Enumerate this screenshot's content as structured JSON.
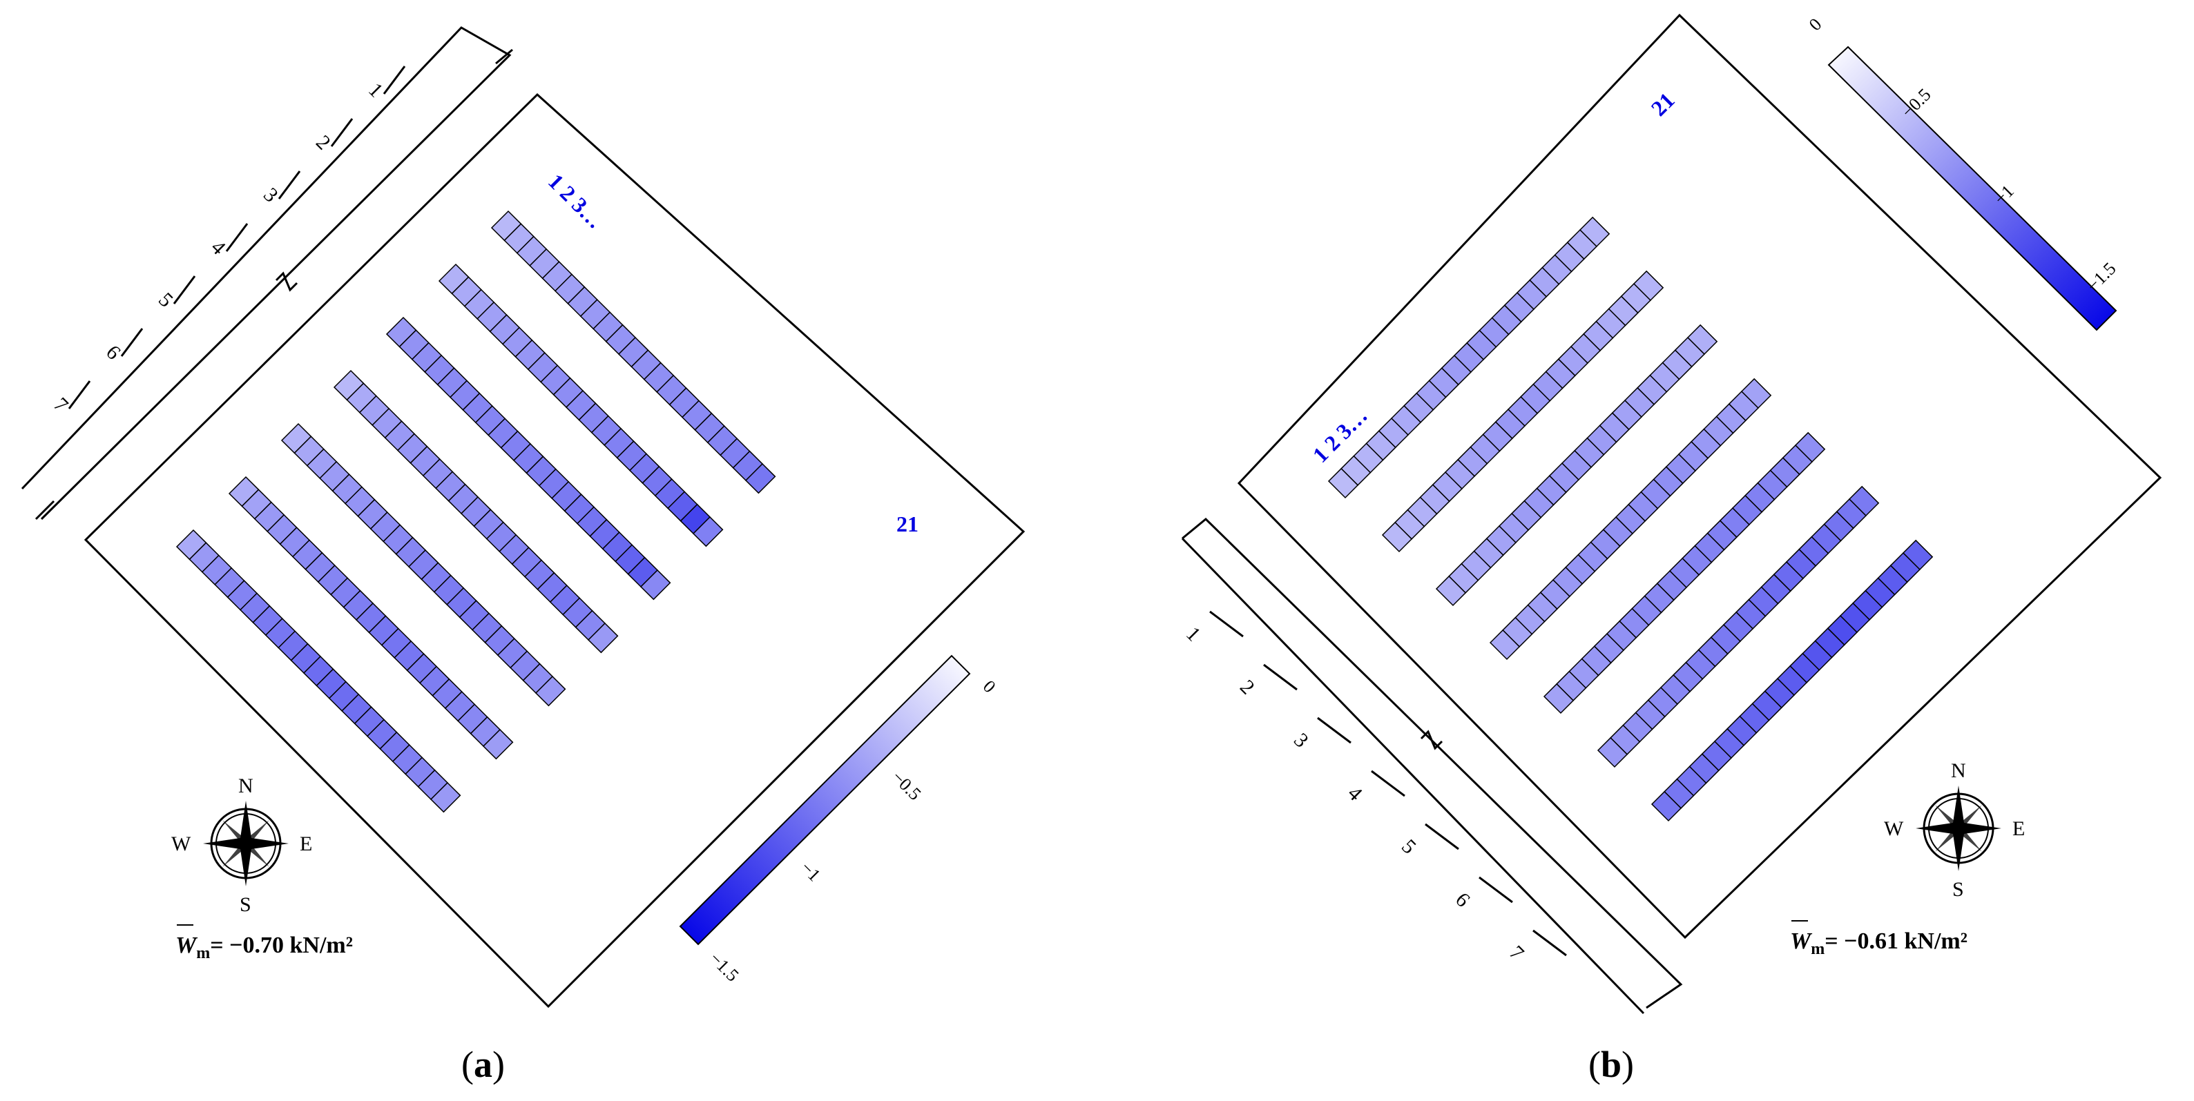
{
  "panels": [
    {
      "caption": "(a)",
      "caption_parts": {
        "open": "(",
        "letter": "a",
        "close": ")"
      },
      "mean_label": {
        "symbol": "W",
        "subscript": "m",
        "text": "= −0.70 kN/m²"
      },
      "row_label_start": "1 2 3…",
      "row_label_end": "21",
      "wind_arrows": [
        "1",
        "2",
        "3",
        "4",
        "5",
        "6",
        "7"
      ],
      "colorbar": {
        "ticks": [
          "0",
          "−0.5",
          "−1",
          "−1.5"
        ],
        "min": -1.5,
        "max": 0
      },
      "compass": {
        "n": "N",
        "s": "S",
        "e": "E",
        "w": "W"
      },
      "rows": [
        [
          -0.42,
          -0.47,
          -0.5,
          -0.52,
          -0.54,
          -0.56,
          -0.58,
          -0.6,
          -0.62,
          -0.63,
          -0.64,
          -0.65,
          -0.66,
          -0.67,
          -0.68,
          -0.69,
          -0.7,
          -0.72,
          -0.74,
          -0.77,
          -0.8
        ],
        [
          -0.46,
          -0.5,
          -0.53,
          -0.56,
          -0.58,
          -0.6,
          -0.62,
          -0.64,
          -0.66,
          -0.67,
          -0.68,
          -0.7,
          -0.72,
          -0.74,
          -0.76,
          -0.78,
          -0.8,
          -0.86,
          -0.95,
          -1.1,
          -0.75
        ],
        [
          -0.6,
          -0.64,
          -0.66,
          -0.68,
          -0.69,
          -0.7,
          -0.71,
          -0.72,
          -0.73,
          -0.74,
          -0.75,
          -0.76,
          -0.77,
          -0.78,
          -0.8,
          -0.82,
          -0.85,
          -0.88,
          -0.92,
          -0.96,
          -0.7
        ],
        [
          -0.42,
          -0.5,
          -0.55,
          -0.58,
          -0.6,
          -0.62,
          -0.63,
          -0.64,
          -0.65,
          -0.66,
          -0.67,
          -0.68,
          -0.7,
          -0.72,
          -0.74,
          -0.76,
          -0.78,
          -0.8,
          -0.76,
          -0.7,
          -0.6
        ],
        [
          -0.45,
          -0.52,
          -0.56,
          -0.59,
          -0.61,
          -0.63,
          -0.65,
          -0.67,
          -0.69,
          -0.71,
          -0.73,
          -0.75,
          -0.77,
          -0.79,
          -0.78,
          -0.76,
          -0.74,
          -0.72,
          -0.7,
          -0.66,
          -0.6
        ],
        [
          -0.48,
          -0.55,
          -0.6,
          -0.63,
          -0.66,
          -0.68,
          -0.7,
          -0.72,
          -0.74,
          -0.76,
          -0.78,
          -0.8,
          -0.81,
          -0.8,
          -0.78,
          -0.76,
          -0.74,
          -0.72,
          -0.7,
          -0.66,
          -0.58
        ],
        [
          -0.5,
          -0.6,
          -0.66,
          -0.7,
          -0.73,
          -0.76,
          -0.78,
          -0.8,
          -0.82,
          -0.84,
          -0.86,
          -0.87,
          -0.86,
          -0.84,
          -0.82,
          -0.8,
          -0.78,
          -0.75,
          -0.72,
          -0.68,
          -0.6
        ]
      ]
    },
    {
      "caption": "(b)",
      "caption_parts": {
        "open": "(",
        "letter": "b",
        "close": ")"
      },
      "mean_label": {
        "symbol": "W",
        "subscript": "m",
        "text": "= −0.61 kN/m²"
      },
      "row_label_start": "1 2 3…",
      "row_label_end": "21",
      "wind_arrows": [
        "1",
        "2",
        "3",
        "4",
        "5",
        "6",
        "7"
      ],
      "colorbar": {
        "ticks": [
          "0",
          "−0.5",
          "−1",
          "−1.5"
        ],
        "min": -1.5,
        "max": 0
      },
      "compass": {
        "n": "N",
        "s": "S",
        "e": "E",
        "w": "W"
      },
      "rows": [
        [
          -0.4,
          -0.42,
          -0.44,
          -0.46,
          -0.48,
          -0.5,
          -0.52,
          -0.54,
          -0.56,
          -0.58,
          -0.6,
          -0.6,
          -0.6,
          -0.58,
          -0.56,
          -0.54,
          -0.52,
          -0.5,
          -0.48,
          -0.46,
          -0.44
        ],
        [
          -0.42,
          -0.44,
          -0.46,
          -0.48,
          -0.5,
          -0.52,
          -0.54,
          -0.56,
          -0.58,
          -0.6,
          -0.6,
          -0.6,
          -0.58,
          -0.56,
          -0.54,
          -0.52,
          -0.5,
          -0.48,
          -0.46,
          -0.45,
          -0.44
        ],
        [
          -0.46,
          -0.48,
          -0.5,
          -0.52,
          -0.54,
          -0.56,
          -0.58,
          -0.6,
          -0.6,
          -0.6,
          -0.6,
          -0.58,
          -0.58,
          -0.56,
          -0.55,
          -0.54,
          -0.52,
          -0.5,
          -0.49,
          -0.48,
          -0.47
        ],
        [
          -0.5,
          -0.52,
          -0.54,
          -0.56,
          -0.58,
          -0.6,
          -0.62,
          -0.63,
          -0.64,
          -0.64,
          -0.64,
          -0.65,
          -0.66,
          -0.66,
          -0.64,
          -0.62,
          -0.6,
          -0.58,
          -0.57,
          -0.56,
          -0.55
        ],
        [
          -0.55,
          -0.57,
          -0.59,
          -0.61,
          -0.63,
          -0.65,
          -0.67,
          -0.68,
          -0.69,
          -0.7,
          -0.71,
          -0.72,
          -0.73,
          -0.74,
          -0.75,
          -0.76,
          -0.74,
          -0.72,
          -0.7,
          -0.68,
          -0.66
        ],
        [
          -0.6,
          -0.62,
          -0.64,
          -0.66,
          -0.68,
          -0.7,
          -0.72,
          -0.74,
          -0.76,
          -0.78,
          -0.8,
          -0.82,
          -0.84,
          -0.86,
          -0.87,
          -0.88,
          -0.86,
          -0.84,
          -0.82,
          -0.8,
          -0.78
        ],
        [
          -0.8,
          -0.8,
          -0.8,
          -0.82,
          -0.84,
          -0.86,
          -0.88,
          -0.9,
          -0.92,
          -0.94,
          -0.96,
          -0.98,
          -1.0,
          -1.02,
          -1.04,
          -1.02,
          -1.0,
          -0.98,
          -0.96,
          -0.94,
          -0.92
        ]
      ]
    }
  ]
}
